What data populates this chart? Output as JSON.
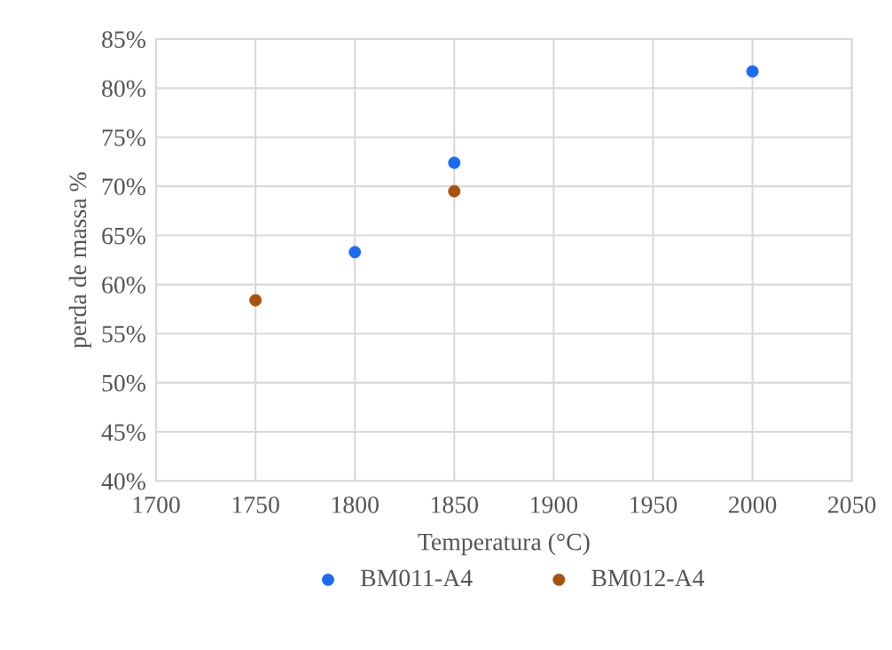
{
  "chart_data": {
    "type": "scatter",
    "xlabel": "Temperatura (°C)",
    "ylabel": "perda de massa %",
    "series": [
      {
        "name": "BM011-A4",
        "color": "#1a6cf0",
        "x": [
          1800,
          1850,
          2000
        ],
        "values": [
          63.3,
          72.4,
          81.7
        ]
      },
      {
        "name": "BM012-A4",
        "color": "#a8520f",
        "x": [
          1750,
          1850
        ],
        "values": [
          58.4,
          69.5
        ]
      }
    ],
    "xlim": [
      1700,
      2050
    ],
    "xticks": [
      1700,
      1750,
      1800,
      1850,
      1900,
      1950,
      2000,
      2050
    ],
    "ylim": [
      40,
      85
    ],
    "yticks": [
      {
        "value": 40,
        "label": "40%"
      },
      {
        "value": 45,
        "label": "45%"
      },
      {
        "value": 50,
        "label": "50%"
      },
      {
        "value": 55,
        "label": "55%"
      },
      {
        "value": 60,
        "label": "60%"
      },
      {
        "value": 65,
        "label": "65%"
      },
      {
        "value": 70,
        "label": "70%"
      },
      {
        "value": 75,
        "label": "75%"
      },
      {
        "value": 80,
        "label": "80%"
      },
      {
        "value": 85,
        "label": "85%"
      }
    ],
    "grid": true,
    "legend": "bottom",
    "marker": "circle"
  }
}
